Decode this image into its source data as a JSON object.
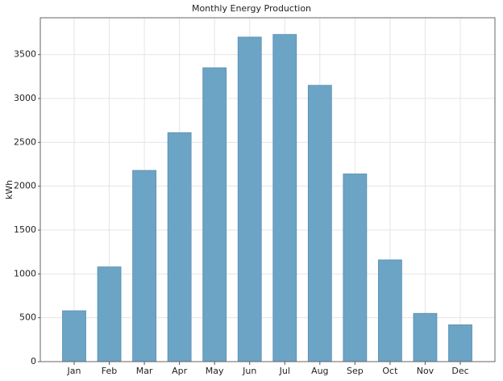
{
  "chart_data": {
    "type": "bar",
    "title": "Monthly Energy Production",
    "y_label": "kWh",
    "categories": [
      "Jan",
      "Feb",
      "Mar",
      "Apr",
      "May",
      "Jun",
      "Jul",
      "Aug",
      "Sep",
      "Oct",
      "Nov",
      "Dec"
    ],
    "values": [
      580,
      1080,
      2180,
      2610,
      3350,
      3700,
      3730,
      3150,
      2140,
      1160,
      550,
      420
    ],
    "color": "#6ca4c6",
    "ylim": [
      0,
      3920
    ],
    "yticks": [
      0,
      500,
      1000,
      1500,
      2000,
      2500,
      3000,
      3500
    ],
    "grid": true
  }
}
